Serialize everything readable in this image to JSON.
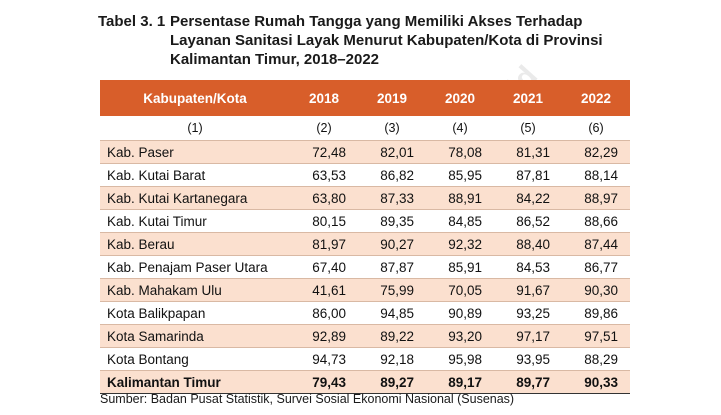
{
  "caption": {
    "number": "Tabel 3. 1",
    "line1": "Persentase Rumah Tangga yang Memiliki Akses Terhadap",
    "line2": "Layanan Sanitasi Layak Menurut Kabupaten/Kota di Provinsi",
    "line3": "Kalimantan Timur, 2018–2022"
  },
  "table": {
    "headers": [
      "Kabupaten/Kota",
      "2018",
      "2019",
      "2020",
      "2021",
      "2022"
    ],
    "index_row": [
      "(1)",
      "(2)",
      "(3)",
      "(4)",
      "(5)",
      "(6)"
    ],
    "rows": [
      [
        "Kab. Paser",
        "72,48",
        "82,01",
        "78,08",
        "81,31",
        "82,29"
      ],
      [
        "Kab. Kutai Barat",
        "63,53",
        "86,82",
        "85,95",
        "87,81",
        "88,14"
      ],
      [
        "Kab. Kutai Kartanegara",
        "63,80",
        "87,33",
        "88,91",
        "84,22",
        "88,97"
      ],
      [
        "Kab. Kutai Timur",
        "80,15",
        "89,35",
        "84,85",
        "86,52",
        "88,66"
      ],
      [
        "Kab. Berau",
        "81,97",
        "90,27",
        "92,32",
        "88,40",
        "87,44"
      ],
      [
        "Kab. Penajam Paser Utara",
        "67,40",
        "87,87",
        "85,91",
        "84,53",
        "86,77"
      ],
      [
        "Kab. Mahakam Ulu",
        "41,61",
        "75,99",
        "70,05",
        "91,67",
        "90,30"
      ],
      [
        "Kota Balikpapan",
        "86,00",
        "94,85",
        "90,89",
        "93,25",
        "89,86"
      ],
      [
        "Kota Samarinda",
        "92,89",
        "89,22",
        "93,20",
        "97,17",
        "97,51"
      ],
      [
        "Kota Bontang",
        "94,73",
        "92,18",
        "95,98",
        "93,95",
        "88,29"
      ]
    ],
    "total": [
      "Kalimantan Timur",
      "79,43",
      "89,27",
      "89,17",
      "89,77",
      "90,33"
    ]
  },
  "source": "Sumber: Badan Pusat Statistik, Survei Sosial Ekonomi Nasional (Susenas)",
  "watermark": "https://kutaimas.bps.go.id",
  "colors": {
    "header_bg": "#d85e2a",
    "stripe": "#fbe0cf"
  }
}
